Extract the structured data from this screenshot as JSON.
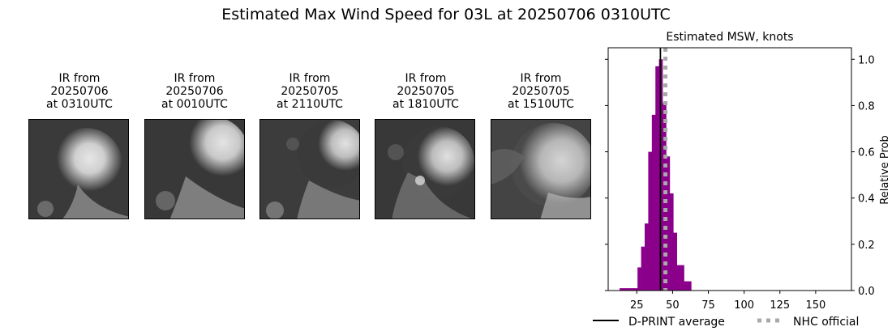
{
  "suptitle": "Estimated Max Wind Speed for 03L at 20250706 0310UTC",
  "ir_panels": [
    {
      "line1": "IR from",
      "line2": "20250706",
      "line3": "at 0310UTC"
    },
    {
      "line1": "IR from",
      "line2": "20250706",
      "line3": "at 0010UTC"
    },
    {
      "line1": "IR from",
      "line2": "20250705",
      "line3": "at 2110UTC"
    },
    {
      "line1": "IR from",
      "line2": "20250705",
      "line3": "at 1810UTC"
    },
    {
      "line1": "IR from",
      "line2": "20250705",
      "line3": "at 1510UTC"
    }
  ],
  "chart_data": {
    "type": "bar",
    "title": "Estimated MSW, knots",
    "xlabel": "",
    "ylabel": "Relative Prob",
    "xlim": [
      5,
      175
    ],
    "ylim": [
      0,
      1.05
    ],
    "xticks": [
      25,
      50,
      75,
      100,
      125,
      150
    ],
    "yticks": [
      0.0,
      0.2,
      0.4,
      0.6,
      0.8,
      1.0
    ],
    "ytick_labels": [
      "0.0",
      "0.2",
      "0.4",
      "0.6",
      "0.8",
      "1.0"
    ],
    "bar_width": 2.5,
    "bar_color": "#8b008b",
    "bins": [
      {
        "x": 14.25,
        "v": 0.01
      },
      {
        "x": 16.75,
        "v": 0.01
      },
      {
        "x": 19.25,
        "v": 0.01
      },
      {
        "x": 21.75,
        "v": 0.01
      },
      {
        "x": 24.25,
        "v": 0.01
      },
      {
        "x": 26.75,
        "v": 0.1
      },
      {
        "x": 29.25,
        "v": 0.19
      },
      {
        "x": 31.75,
        "v": 0.29
      },
      {
        "x": 34.25,
        "v": 0.6
      },
      {
        "x": 36.75,
        "v": 0.76
      },
      {
        "x": 39.25,
        "v": 0.97
      },
      {
        "x": 41.75,
        "v": 1.0
      },
      {
        "x": 44.25,
        "v": 0.81
      },
      {
        "x": 46.75,
        "v": 0.58
      },
      {
        "x": 49.25,
        "v": 0.42
      },
      {
        "x": 51.75,
        "v": 0.25
      },
      {
        "x": 54.25,
        "v": 0.11
      },
      {
        "x": 56.75,
        "v": 0.11
      },
      {
        "x": 59.25,
        "v": 0.04
      },
      {
        "x": 61.75,
        "v": 0.04
      }
    ],
    "lines": [
      {
        "name": "D-PRINT average",
        "x": 41.5,
        "color": "#000000",
        "style": "solid"
      },
      {
        "name": "NHC official",
        "x": 45,
        "color": "#a9a9a9",
        "style": "dotted"
      }
    ],
    "legend": {
      "placement": "bottom",
      "items": [
        "D-PRINT average",
        "NHC official"
      ]
    }
  }
}
